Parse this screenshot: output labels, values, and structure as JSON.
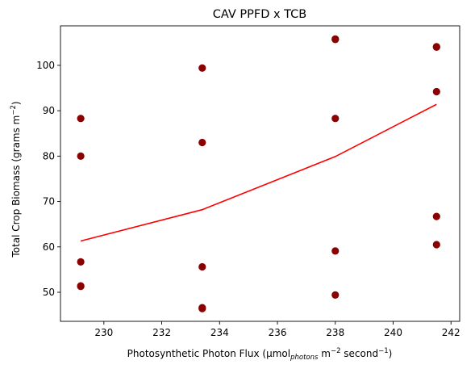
{
  "chart_data": {
    "type": "scatter",
    "title": "CAV PPFD x TCB",
    "xlabel": {
      "main": "Photosynthetic Photon Flux (µmol",
      "sub": "photons",
      "unit": " m",
      "exp1": "−2",
      "mid": " second",
      "exp2": "−1",
      "end": ")"
    },
    "ylabel": {
      "main": "Total Crop Biomass (grams m",
      "exp": "−2",
      "end": ")"
    },
    "xlim": [
      228.5,
      242.3
    ],
    "ylim": [
      43.6,
      108.7
    ],
    "xticks": [
      230,
      232,
      234,
      236,
      238,
      240,
      242
    ],
    "yticks": [
      50,
      60,
      70,
      80,
      90,
      100
    ],
    "points": [
      {
        "x": 229.2,
        "y": 88.3
      },
      {
        "x": 229.2,
        "y": 80.0
      },
      {
        "x": 229.2,
        "y": 56.7
      },
      {
        "x": 229.2,
        "y": 51.4
      },
      {
        "x": 229.2,
        "y": 51.3
      },
      {
        "x": 233.4,
        "y": 99.4
      },
      {
        "x": 233.4,
        "y": 83.0
      },
      {
        "x": 233.4,
        "y": 55.6
      },
      {
        "x": 233.4,
        "y": 46.6
      },
      {
        "x": 233.4,
        "y": 46.4
      },
      {
        "x": 238.0,
        "y": 105.8
      },
      {
        "x": 238.0,
        "y": 105.7
      },
      {
        "x": 238.0,
        "y": 88.3
      },
      {
        "x": 238.0,
        "y": 59.1
      },
      {
        "x": 238.0,
        "y": 49.4
      },
      {
        "x": 241.5,
        "y": 104.1
      },
      {
        "x": 241.5,
        "y": 104.0
      },
      {
        "x": 241.5,
        "y": 94.2
      },
      {
        "x": 241.5,
        "y": 66.7
      },
      {
        "x": 241.5,
        "y": 60.5
      }
    ],
    "line": [
      {
        "x": 229.2,
        "y": 61.3
      },
      {
        "x": 233.4,
        "y": 68.2
      },
      {
        "x": 238.0,
        "y": 79.9
      },
      {
        "x": 241.5,
        "y": 91.4
      }
    ],
    "point_color": "#8b0000",
    "line_color": "#ff0000",
    "grid": false
  }
}
